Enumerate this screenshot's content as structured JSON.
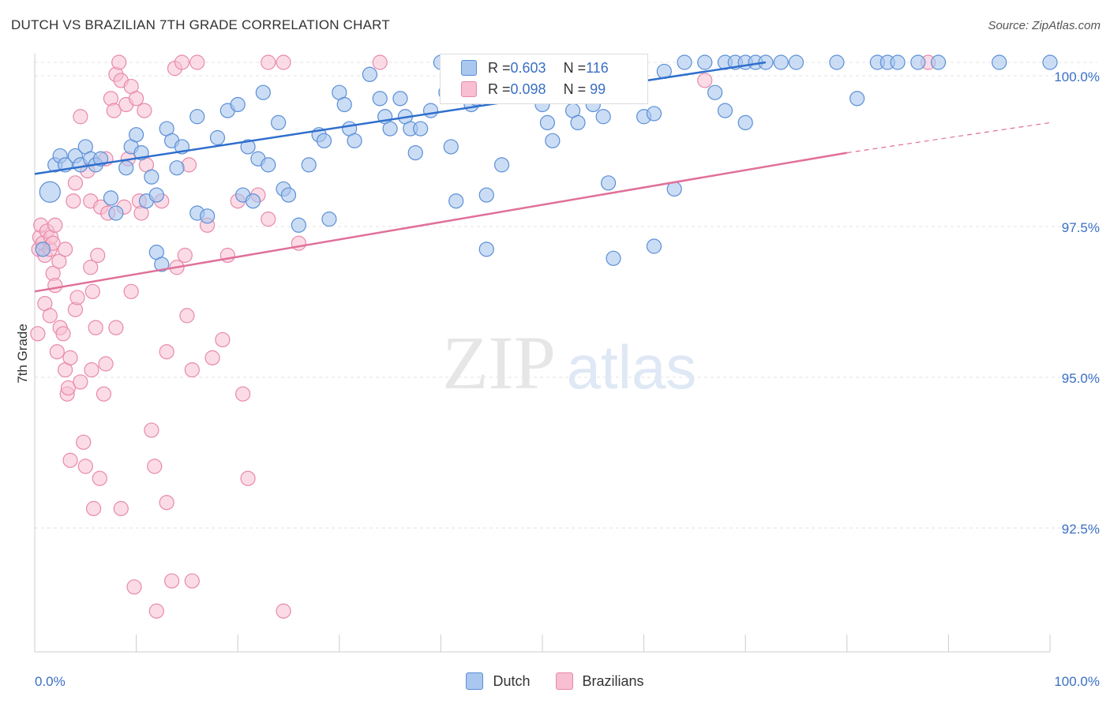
{
  "header": {
    "title": "DUTCH VS BRAZILIAN 7TH GRADE CORRELATION CHART",
    "source": "Source: ZipAtlas.com"
  },
  "watermark": {
    "zip": "ZIP",
    "atlas": "atlas"
  },
  "colors": {
    "dutch_fill": "#a9c7ef",
    "dutch_stroke": "#5b8fd6",
    "dutch_line": "#2f6fcd",
    "braz_fill": "#f7bfd1",
    "braz_stroke": "#e889a9",
    "braz_line": "#e0709a",
    "axis_label": "#3a6fc4",
    "grid": "#e3e3e3"
  },
  "legend_top": {
    "rows": [
      {
        "r_label": "R = ",
        "r_value": "0.603",
        "n_label": "N = ",
        "n_value": "116"
      },
      {
        "r_label": "R = ",
        "r_value": "0.098",
        "n_label": "N = ",
        "n_value": " 99"
      }
    ]
  },
  "legend_bottom": {
    "dutch": "Dutch",
    "brazilians": "Brazilians"
  },
  "chart_data": {
    "type": "scatter",
    "title": "DUTCH VS BRAZILIAN 7TH GRADE CORRELATION CHART",
    "xlabel": "",
    "ylabel": "7th Grade",
    "xlim": [
      0,
      100
    ],
    "ylim": [
      90.0,
      100.5
    ],
    "x_tick_labels": [
      "0.0%",
      "100.0%"
    ],
    "y_ticks": [
      {
        "value": 100.0,
        "label": "100.0%"
      },
      {
        "value": 97.5,
        "label": "97.5%"
      },
      {
        "value": 95.0,
        "label": "95.0%"
      },
      {
        "value": 92.5,
        "label": "92.5%"
      }
    ],
    "grid": true,
    "legend_position": "top-center",
    "series": [
      {
        "name": "Dutch",
        "r": 0.603,
        "n": 116,
        "trend": {
          "x": [
            0,
            72
          ],
          "y": [
            98.15,
            100.0
          ]
        },
        "points": [
          [
            1.5,
            97.85
          ],
          [
            2,
            98.3
          ],
          [
            2.5,
            98.45
          ],
          [
            3,
            98.3
          ],
          [
            4,
            98.45
          ],
          [
            4.5,
            98.3
          ],
          [
            5,
            98.6
          ],
          [
            5.5,
            98.4
          ],
          [
            6,
            98.3
          ],
          [
            6.5,
            98.4
          ],
          [
            7.5,
            97.75
          ],
          [
            8,
            97.5
          ],
          [
            9,
            98.25
          ],
          [
            9.5,
            98.6
          ],
          [
            10,
            98.8
          ],
          [
            10.5,
            98.5
          ],
          [
            11,
            97.7
          ],
          [
            11.5,
            98.1
          ],
          [
            12,
            96.85
          ],
          [
            12,
            97.8
          ],
          [
            12.5,
            96.65
          ],
          [
            13,
            98.9
          ],
          [
            13.5,
            98.7
          ],
          [
            14,
            98.25
          ],
          [
            14.5,
            98.6
          ],
          [
            16,
            97.5
          ],
          [
            16,
            99.1
          ],
          [
            17,
            97.45
          ],
          [
            18,
            98.75
          ],
          [
            19,
            99.2
          ],
          [
            20,
            99.3
          ],
          [
            20.5,
            97.8
          ],
          [
            21,
            98.6
          ],
          [
            21.5,
            97.7
          ],
          [
            22,
            98.4
          ],
          [
            22.5,
            99.5
          ],
          [
            23,
            98.3
          ],
          [
            24,
            99.0
          ],
          [
            24.5,
            97.9
          ],
          [
            25,
            97.8
          ],
          [
            26,
            97.3
          ],
          [
            27,
            98.3
          ],
          [
            28,
            98.8
          ],
          [
            28.5,
            98.7
          ],
          [
            29,
            97.4
          ],
          [
            30,
            99.5
          ],
          [
            30.5,
            99.3
          ],
          [
            31,
            98.9
          ],
          [
            31.5,
            98.7
          ],
          [
            33,
            99.8
          ],
          [
            34,
            99.4
          ],
          [
            34.5,
            99.1
          ],
          [
            35,
            98.9
          ],
          [
            36,
            99.4
          ],
          [
            36.5,
            99.1
          ],
          [
            37,
            98.9
          ],
          [
            37.5,
            98.5
          ],
          [
            38,
            98.9
          ],
          [
            39,
            99.2
          ],
          [
            40,
            100.0
          ],
          [
            40.5,
            99.5
          ],
          [
            41,
            98.6
          ],
          [
            41.5,
            97.7
          ],
          [
            42,
            99.8
          ],
          [
            43,
            99.3
          ],
          [
            43.5,
            99.4
          ],
          [
            44,
            99.6
          ],
          [
            44.5,
            97.8
          ],
          [
            45,
            100.0
          ],
          [
            45.5,
            99.7
          ],
          [
            46,
            98.3
          ],
          [
            47,
            99.8
          ],
          [
            47.5,
            99.5
          ],
          [
            48,
            100.0
          ],
          [
            49,
            100.0
          ],
          [
            50,
            100.0
          ],
          [
            50,
            99.3
          ],
          [
            50.5,
            99.0
          ],
          [
            51,
            98.7
          ],
          [
            53,
            99.2
          ],
          [
            53.5,
            99.0
          ],
          [
            54.5,
            99.5
          ],
          [
            55,
            99.3
          ],
          [
            56,
            99.1
          ],
          [
            56.5,
            98.0
          ],
          [
            57,
            99.9
          ],
          [
            57,
            96.75
          ],
          [
            58,
            99.9
          ],
          [
            60,
            99.1
          ],
          [
            61,
            99.15
          ],
          [
            61,
            96.95
          ],
          [
            62,
            99.85
          ],
          [
            63,
            97.9
          ],
          [
            64,
            100.0
          ],
          [
            66,
            100.0
          ],
          [
            67,
            99.5
          ],
          [
            68,
            100.0
          ],
          [
            68,
            99.2
          ],
          [
            69,
            100.0
          ],
          [
            70,
            99.0
          ],
          [
            70,
            100.0
          ],
          [
            71,
            100.0
          ],
          [
            72,
            100.0
          ],
          [
            73.5,
            100.0
          ],
          [
            75,
            100.0
          ],
          [
            79,
            100.0
          ],
          [
            81,
            99.4
          ],
          [
            83,
            100.0
          ],
          [
            84,
            100.0
          ],
          [
            85,
            100.0
          ],
          [
            87,
            100.0
          ],
          [
            95,
            100.0
          ],
          [
            100,
            100.0
          ],
          [
            89,
            100.0
          ],
          [
            44.5,
            96.9
          ],
          [
            0.8,
            96.9
          ]
        ]
      },
      {
        "name": "Brazilians",
        "r": 0.098,
        "n": 99,
        "trend": {
          "x": [
            0,
            80
          ],
          "y": [
            96.2,
            98.5
          ]
        },
        "trend_dashed": {
          "x": [
            80,
            100
          ],
          "y": [
            98.5,
            99.0
          ]
        },
        "points": [
          [
            0.3,
            95.5
          ],
          [
            0.4,
            96.9
          ],
          [
            0.5,
            97.1
          ],
          [
            0.6,
            97.3
          ],
          [
            0.8,
            97.0
          ],
          [
            1,
            96.8
          ],
          [
            1,
            96.0
          ],
          [
            1.2,
            97.2
          ],
          [
            1.5,
            96.9
          ],
          [
            1.5,
            95.8
          ],
          [
            1.6,
            97.1
          ],
          [
            1.8,
            97.0
          ],
          [
            1.8,
            96.5
          ],
          [
            2,
            97.3
          ],
          [
            2,
            96.3
          ],
          [
            2.2,
            95.2
          ],
          [
            2.4,
            96.7
          ],
          [
            2.5,
            95.6
          ],
          [
            2.8,
            95.5
          ],
          [
            3,
            96.9
          ],
          [
            3,
            94.9
          ],
          [
            3.2,
            94.5
          ],
          [
            3.3,
            94.6
          ],
          [
            3.5,
            95.1
          ],
          [
            3.5,
            93.4
          ],
          [
            3.8,
            97.7
          ],
          [
            4,
            98.0
          ],
          [
            4,
            95.9
          ],
          [
            4.2,
            96.1
          ],
          [
            4.5,
            99.1
          ],
          [
            4.5,
            94.7
          ],
          [
            4.8,
            93.7
          ],
          [
            5,
            93.3
          ],
          [
            5.2,
            98.2
          ],
          [
            5.5,
            97.7
          ],
          [
            5.5,
            96.6
          ],
          [
            5.6,
            94.9
          ],
          [
            5.7,
            96.2
          ],
          [
            5.8,
            92.6
          ],
          [
            6,
            95.6
          ],
          [
            6.2,
            96.8
          ],
          [
            6.4,
            93.1
          ],
          [
            6.5,
            97.6
          ],
          [
            6.8,
            94.5
          ],
          [
            7,
            98.4
          ],
          [
            7,
            95.0
          ],
          [
            7.2,
            97.5
          ],
          [
            7.5,
            99.4
          ],
          [
            7.8,
            99.2
          ],
          [
            8,
            99.8
          ],
          [
            8,
            95.6
          ],
          [
            8.3,
            100.0
          ],
          [
            8.5,
            99.7
          ],
          [
            8.5,
            92.6
          ],
          [
            8.8,
            97.6
          ],
          [
            9,
            99.3
          ],
          [
            9.2,
            98.4
          ],
          [
            9.5,
            96.2
          ],
          [
            9.5,
            99.6
          ],
          [
            9.8,
            91.3
          ],
          [
            10,
            99.4
          ],
          [
            10.3,
            97.7
          ],
          [
            10.5,
            97.5
          ],
          [
            10.8,
            99.2
          ],
          [
            11,
            98.3
          ],
          [
            11.5,
            93.9
          ],
          [
            11.8,
            93.3
          ],
          [
            12,
            90.9
          ],
          [
            12.5,
            97.7
          ],
          [
            13,
            95.2
          ],
          [
            13,
            92.7
          ],
          [
            13.5,
            91.4
          ],
          [
            13.8,
            99.9
          ],
          [
            14,
            96.6
          ],
          [
            14.5,
            100.0
          ],
          [
            14.8,
            96.8
          ],
          [
            15,
            95.8
          ],
          [
            15.2,
            98.3
          ],
          [
            15.5,
            94.9
          ],
          [
            15.5,
            91.4
          ],
          [
            16,
            100.0
          ],
          [
            17,
            97.3
          ],
          [
            17.5,
            95.1
          ],
          [
            18.5,
            95.4
          ],
          [
            19,
            96.8
          ],
          [
            20,
            97.7
          ],
          [
            20.5,
            94.5
          ],
          [
            21,
            93.1
          ],
          [
            22,
            97.8
          ],
          [
            23,
            100.0
          ],
          [
            23,
            97.4
          ],
          [
            24.5,
            100.0
          ],
          [
            24.5,
            90.9
          ],
          [
            26,
            97.0
          ],
          [
            34,
            100.0
          ],
          [
            44,
            99.5
          ],
          [
            49,
            99.9
          ],
          [
            66,
            99.7
          ],
          [
            88,
            100.0
          ]
        ]
      }
    ]
  }
}
